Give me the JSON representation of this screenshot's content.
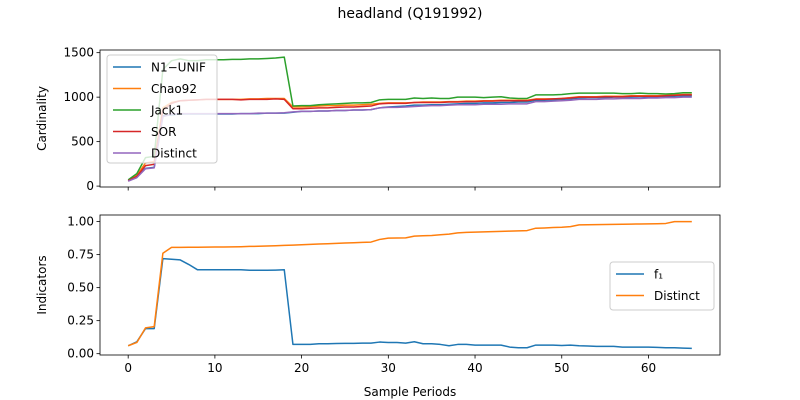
{
  "title": "headland (Q191992)",
  "colors": {
    "blue": "#1f77b4",
    "orange": "#ff7f0e",
    "green": "#2ca02c",
    "red": "#d62728",
    "purple": "#9467bd"
  },
  "chart_data": [
    {
      "type": "line",
      "title": "",
      "xlabel": "",
      "ylabel": "Cardinality",
      "xlim": [
        -3.25,
        68.25
      ],
      "ylim": [
        -10,
        1530
      ],
      "xticks": [
        0,
        10,
        20,
        30,
        40,
        50,
        60
      ],
      "xtick_labels_visible": false,
      "yticks": [
        0,
        500,
        1000,
        1500
      ],
      "ytick_labels": [
        "0",
        "500",
        "1000",
        "1500"
      ],
      "legend_position": "upper-left",
      "grid": false,
      "series": [
        {
          "name": "N1−UNIF",
          "color": "blue",
          "x": [
            0,
            1,
            2,
            3,
            4,
            5,
            6,
            7,
            8,
            9,
            10,
            11,
            12,
            13,
            14,
            15,
            16,
            17,
            18,
            19,
            20,
            21,
            22,
            23,
            24,
            25,
            26,
            27,
            28,
            29,
            30,
            31,
            32,
            33,
            34,
            35,
            36,
            37,
            38,
            39,
            40,
            41,
            42,
            43,
            44,
            45,
            46,
            47,
            48,
            49,
            50,
            51,
            52,
            53,
            54,
            55,
            56,
            57,
            58,
            59,
            60,
            61,
            62,
            63,
            64,
            65
          ],
          "y": [
            60,
            100,
            200,
            210,
            790,
            800,
            810,
            810,
            810,
            810,
            810,
            810,
            810,
            815,
            815,
            815,
            820,
            820,
            820,
            830,
            840,
            840,
            845,
            845,
            850,
            850,
            855,
            855,
            860,
            880,
            890,
            895,
            900,
            910,
            910,
            915,
            915,
            920,
            925,
            930,
            930,
            935,
            935,
            940,
            940,
            945,
            945,
            965,
            965,
            970,
            975,
            980,
            990,
            995,
            995,
            995,
            1000,
            1000,
            1000,
            1005,
            1005,
            1005,
            1010,
            1010,
            1015,
            1015
          ]
        },
        {
          "name": "Chao92",
          "color": "orange",
          "x": [
            0,
            1,
            2,
            3,
            4,
            5,
            6,
            7,
            8,
            9,
            10,
            11,
            12,
            13,
            14,
            15,
            16,
            17,
            18,
            19,
            20,
            21,
            22,
            23,
            24,
            25,
            26,
            27,
            28,
            29,
            30,
            31,
            32,
            33,
            34,
            35,
            36,
            37,
            38,
            39,
            40,
            41,
            42,
            43,
            44,
            45,
            46,
            47,
            48,
            49,
            50,
            51,
            52,
            53,
            54,
            55,
            56,
            57,
            58,
            59,
            60,
            61,
            62,
            63,
            64,
            65
          ],
          "y": [
            60,
            120,
            260,
            275,
            880,
            940,
            960,
            965,
            970,
            975,
            975,
            975,
            975,
            975,
            980,
            980,
            985,
            985,
            985,
            890,
            890,
            895,
            900,
            905,
            905,
            910,
            910,
            915,
            920,
            930,
            935,
            935,
            935,
            940,
            945,
            945,
            945,
            950,
            950,
            955,
            955,
            960,
            960,
            965,
            965,
            965,
            965,
            980,
            980,
            980,
            985,
            995,
            1005,
            1005,
            1005,
            1010,
            1010,
            1010,
            1015,
            1015,
            1015,
            1015,
            1020,
            1025,
            1030,
            1030
          ]
        },
        {
          "name": "Jack1",
          "color": "green",
          "x": [
            0,
            1,
            2,
            3,
            4,
            5,
            6,
            7,
            8,
            9,
            10,
            11,
            12,
            13,
            14,
            15,
            16,
            17,
            18,
            19,
            20,
            21,
            22,
            23,
            24,
            25,
            26,
            27,
            28,
            29,
            30,
            31,
            32,
            33,
            34,
            35,
            36,
            37,
            38,
            39,
            40,
            41,
            42,
            43,
            44,
            45,
            46,
            47,
            48,
            49,
            50,
            51,
            52,
            53,
            54,
            55,
            56,
            57,
            58,
            59,
            60,
            61,
            62,
            63,
            64,
            65
          ],
          "y": [
            70,
            140,
            320,
            335,
            1310,
            1410,
            1430,
            1410,
            1410,
            1420,
            1420,
            1420,
            1425,
            1425,
            1430,
            1430,
            1435,
            1440,
            1450,
            900,
            905,
            905,
            915,
            920,
            925,
            930,
            935,
            935,
            940,
            970,
            975,
            975,
            975,
            990,
            985,
            990,
            985,
            985,
            1000,
            1000,
            1000,
            995,
            1000,
            1005,
            990,
            985,
            985,
            1025,
            1025,
            1025,
            1030,
            1040,
            1045,
            1045,
            1045,
            1045,
            1045,
            1040,
            1040,
            1045,
            1040,
            1040,
            1035,
            1040,
            1050,
            1050
          ]
        },
        {
          "name": "SOR",
          "color": "red",
          "x": [
            0,
            1,
            2,
            3,
            4,
            5,
            6,
            7,
            8,
            9,
            10,
            11,
            12,
            13,
            14,
            15,
            16,
            17,
            18,
            19,
            20,
            21,
            22,
            23,
            24,
            25,
            26,
            27,
            28,
            29,
            30,
            31,
            32,
            33,
            34,
            35,
            36,
            37,
            38,
            39,
            40,
            41,
            42,
            43,
            44,
            45,
            46,
            47,
            48,
            49,
            50,
            51,
            52,
            53,
            54,
            55,
            56,
            57,
            58,
            59,
            60,
            61,
            62,
            63,
            64,
            65
          ],
          "y": [
            60,
            110,
            230,
            245,
            850,
            930,
            960,
            965,
            970,
            975,
            975,
            975,
            975,
            970,
            975,
            975,
            975,
            980,
            975,
            870,
            870,
            875,
            880,
            880,
            885,
            890,
            890,
            895,
            900,
            925,
            930,
            930,
            930,
            940,
            940,
            940,
            940,
            945,
            945,
            950,
            950,
            955,
            955,
            960,
            960,
            960,
            960,
            975,
            975,
            980,
            985,
            990,
            1000,
            1000,
            1000,
            1005,
            1005,
            1005,
            1010,
            1010,
            1010,
            1010,
            1015,
            1020,
            1025,
            1025
          ]
        },
        {
          "name": "Distinct",
          "color": "purple",
          "x": [
            0,
            1,
            2,
            3,
            4,
            5,
            6,
            7,
            8,
            9,
            10,
            11,
            12,
            13,
            14,
            15,
            16,
            17,
            18,
            19,
            20,
            21,
            22,
            23,
            24,
            25,
            26,
            27,
            28,
            29,
            30,
            31,
            32,
            33,
            34,
            35,
            36,
            37,
            38,
            39,
            40,
            41,
            42,
            43,
            44,
            45,
            46,
            47,
            48,
            49,
            50,
            51,
            52,
            53,
            54,
            55,
            56,
            57,
            58,
            59,
            60,
            61,
            62,
            63,
            64,
            65
          ],
          "y": [
            55,
            95,
            195,
            205,
            780,
            810,
            815,
            815,
            815,
            815,
            815,
            815,
            815,
            815,
            815,
            820,
            820,
            820,
            825,
            835,
            840,
            840,
            845,
            845,
            850,
            850,
            855,
            855,
            860,
            880,
            885,
            885,
            890,
            895,
            900,
            905,
            905,
            910,
            915,
            915,
            915,
            920,
            920,
            920,
            925,
            925,
            925,
            950,
            950,
            955,
            960,
            965,
            975,
            975,
            975,
            980,
            980,
            985,
            985,
            985,
            990,
            990,
            995,
            995,
            1000,
            1000
          ]
        }
      ]
    },
    {
      "type": "line",
      "title": "",
      "xlabel": "Sample Periods",
      "ylabel": "Indicators",
      "xlim": [
        -3.25,
        68.25
      ],
      "ylim": [
        -0.01,
        1.05
      ],
      "xticks": [
        0,
        10,
        20,
        30,
        40,
        50,
        60
      ],
      "xtick_labels": [
        "0",
        "10",
        "20",
        "30",
        "40",
        "50",
        "60"
      ],
      "yticks": [
        0,
        0.25,
        0.5,
        0.75,
        1.0
      ],
      "ytick_labels": [
        "0.00",
        "0.25",
        "0.50",
        "0.75",
        "1.00"
      ],
      "legend_position": "center-right",
      "grid": false,
      "series": [
        {
          "name": "f₁",
          "color": "blue",
          "x": [
            0,
            1,
            2,
            3,
            4,
            5,
            6,
            7,
            8,
            9,
            10,
            11,
            12,
            13,
            14,
            15,
            16,
            17,
            18,
            19,
            20,
            21,
            22,
            23,
            24,
            25,
            26,
            27,
            28,
            29,
            30,
            31,
            32,
            33,
            34,
            35,
            36,
            37,
            38,
            39,
            40,
            41,
            42,
            43,
            44,
            45,
            46,
            47,
            48,
            49,
            50,
            51,
            52,
            53,
            54,
            55,
            56,
            57,
            58,
            59,
            60,
            61,
            62,
            63,
            64,
            65
          ],
          "y": [
            0.06,
            0.09,
            0.19,
            0.19,
            0.72,
            0.715,
            0.71,
            0.675,
            0.635,
            0.635,
            0.635,
            0.635,
            0.635,
            0.635,
            0.632,
            0.632,
            0.632,
            0.633,
            0.635,
            0.07,
            0.07,
            0.07,
            0.075,
            0.075,
            0.077,
            0.078,
            0.078,
            0.08,
            0.08,
            0.088,
            0.085,
            0.085,
            0.08,
            0.09,
            0.075,
            0.075,
            0.07,
            0.06,
            0.07,
            0.07,
            0.065,
            0.065,
            0.065,
            0.065,
            0.05,
            0.045,
            0.045,
            0.065,
            0.065,
            0.065,
            0.062,
            0.065,
            0.06,
            0.058,
            0.055,
            0.055,
            0.055,
            0.05,
            0.05,
            0.05,
            0.05,
            0.048,
            0.045,
            0.045,
            0.042,
            0.04
          ]
        },
        {
          "name": "Distinct",
          "color": "orange",
          "x": [
            0,
            1,
            2,
            3,
            4,
            5,
            6,
            7,
            8,
            9,
            10,
            11,
            12,
            13,
            14,
            15,
            16,
            17,
            18,
            19,
            20,
            21,
            22,
            23,
            24,
            25,
            26,
            27,
            28,
            29,
            30,
            31,
            32,
            33,
            34,
            35,
            36,
            37,
            38,
            39,
            40,
            41,
            42,
            43,
            44,
            45,
            46,
            47,
            48,
            49,
            50,
            51,
            52,
            53,
            54,
            55,
            56,
            57,
            58,
            59,
            60,
            61,
            62,
            63,
            64,
            65
          ],
          "y": [
            0.06,
            0.085,
            0.195,
            0.205,
            0.76,
            0.805,
            0.805,
            0.806,
            0.806,
            0.807,
            0.808,
            0.808,
            0.809,
            0.81,
            0.812,
            0.813,
            0.815,
            0.817,
            0.82,
            0.822,
            0.825,
            0.828,
            0.83,
            0.832,
            0.835,
            0.838,
            0.84,
            0.843,
            0.845,
            0.865,
            0.875,
            0.876,
            0.877,
            0.89,
            0.893,
            0.895,
            0.9,
            0.905,
            0.915,
            0.918,
            0.92,
            0.922,
            0.924,
            0.926,
            0.928,
            0.93,
            0.932,
            0.95,
            0.952,
            0.955,
            0.957,
            0.962,
            0.975,
            0.976,
            0.977,
            0.978,
            0.979,
            0.98,
            0.981,
            0.982,
            0.983,
            0.984,
            0.986,
            1.0,
            1.0,
            1.0
          ]
        }
      ]
    }
  ]
}
